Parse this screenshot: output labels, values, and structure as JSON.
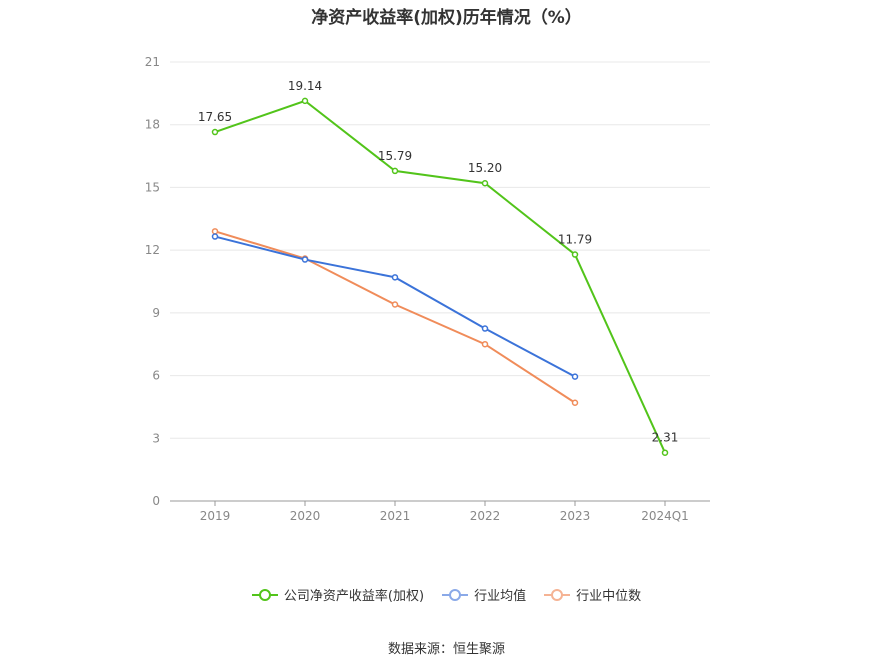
{
  "chart_data": {
    "type": "line",
    "title": "净资产收益率(加权)历年情况（%）",
    "categories": [
      "2019",
      "2020",
      "2021",
      "2022",
      "2023",
      "2024Q1"
    ],
    "ylim": [
      0,
      21
    ],
    "yticks": [
      0,
      3,
      6,
      9,
      12,
      15,
      18,
      21
    ],
    "grid": true,
    "legend_position": "bottom",
    "series": [
      {
        "name": "公司净资产收益率(加权)",
        "color": "#52c41a",
        "values": [
          17.65,
          19.14,
          15.79,
          15.2,
          11.79,
          2.31
        ],
        "labels": [
          "17.65",
          "19.14",
          "15.79",
          "15.20",
          "11.79",
          "2.31"
        ]
      },
      {
        "name": "行业均值",
        "color": "#3b73d9",
        "values": [
          12.65,
          11.55,
          10.7,
          8.25,
          5.95,
          null
        ]
      },
      {
        "name": "行业中位数",
        "color": "#f08c5a",
        "values": [
          12.9,
          11.6,
          9.4,
          7.5,
          4.7,
          null
        ]
      }
    ]
  },
  "source": "数据来源：恒生聚源"
}
